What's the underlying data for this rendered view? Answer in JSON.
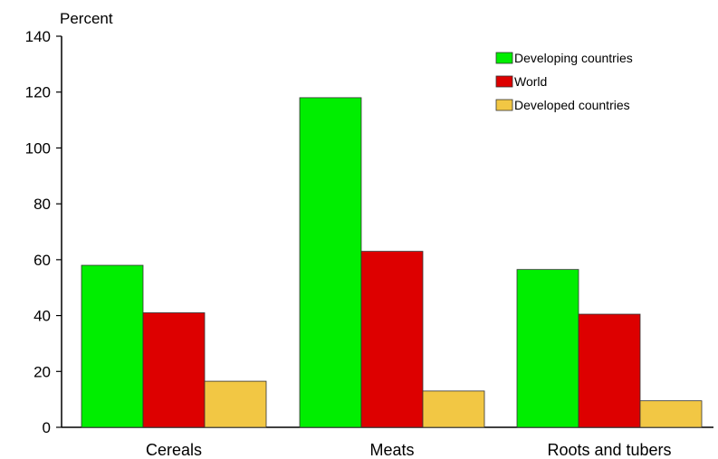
{
  "chart_data": {
    "type": "bar",
    "ylabel": "Percent",
    "ylim": [
      0,
      140
    ],
    "yticks": [
      0,
      20,
      40,
      60,
      80,
      100,
      120,
      140
    ],
    "categories": [
      "Cereals",
      "Meats",
      "Roots and tubers"
    ],
    "series": [
      {
        "name": "Developing countries",
        "color": "#00ee00",
        "values": [
          58,
          118,
          56.5
        ]
      },
      {
        "name": "World",
        "color": "#dd0000",
        "values": [
          41,
          63,
          40.5
        ]
      },
      {
        "name": "Developed countries",
        "color": "#f2c744",
        "values": [
          16.5,
          13,
          9.5
        ]
      }
    ],
    "legend_position": "top-right",
    "grid": false
  }
}
